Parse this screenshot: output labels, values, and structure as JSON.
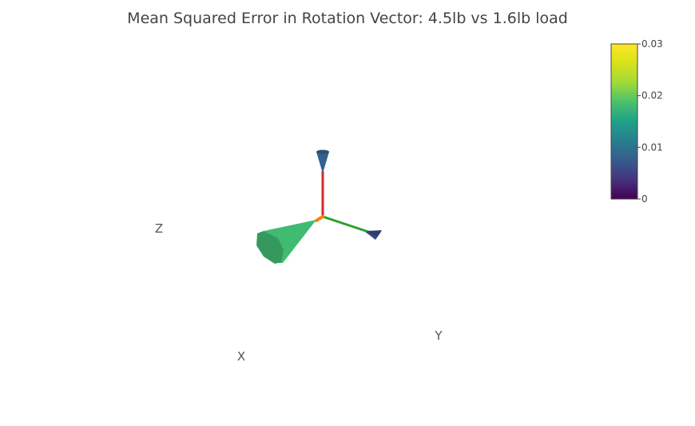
{
  "chart_data": {
    "type": "cone",
    "title": "Mean Squared Error in Rotation Vector: 4.5lb vs 1.6lb load",
    "axes": {
      "x_label": "X",
      "y_label": "Y",
      "z_label": "Z"
    },
    "colorscale": {
      "name": "Viridis",
      "min": 0,
      "max": 0.03,
      "tick_values": [
        0,
        0.01,
        0.02,
        0.03
      ],
      "tick_labels": [
        "0",
        "0.01",
        "0.02",
        "0.03"
      ]
    },
    "axis_colors": {
      "x": "#ff7f0e",
      "y": "#2ca02c",
      "z": "#d62728"
    },
    "cones": [
      {
        "axis": "X",
        "mse": 0.018
      },
      {
        "axis": "Y",
        "mse": 0.006
      },
      {
        "axis": "Z",
        "mse": 0.008
      }
    ]
  }
}
